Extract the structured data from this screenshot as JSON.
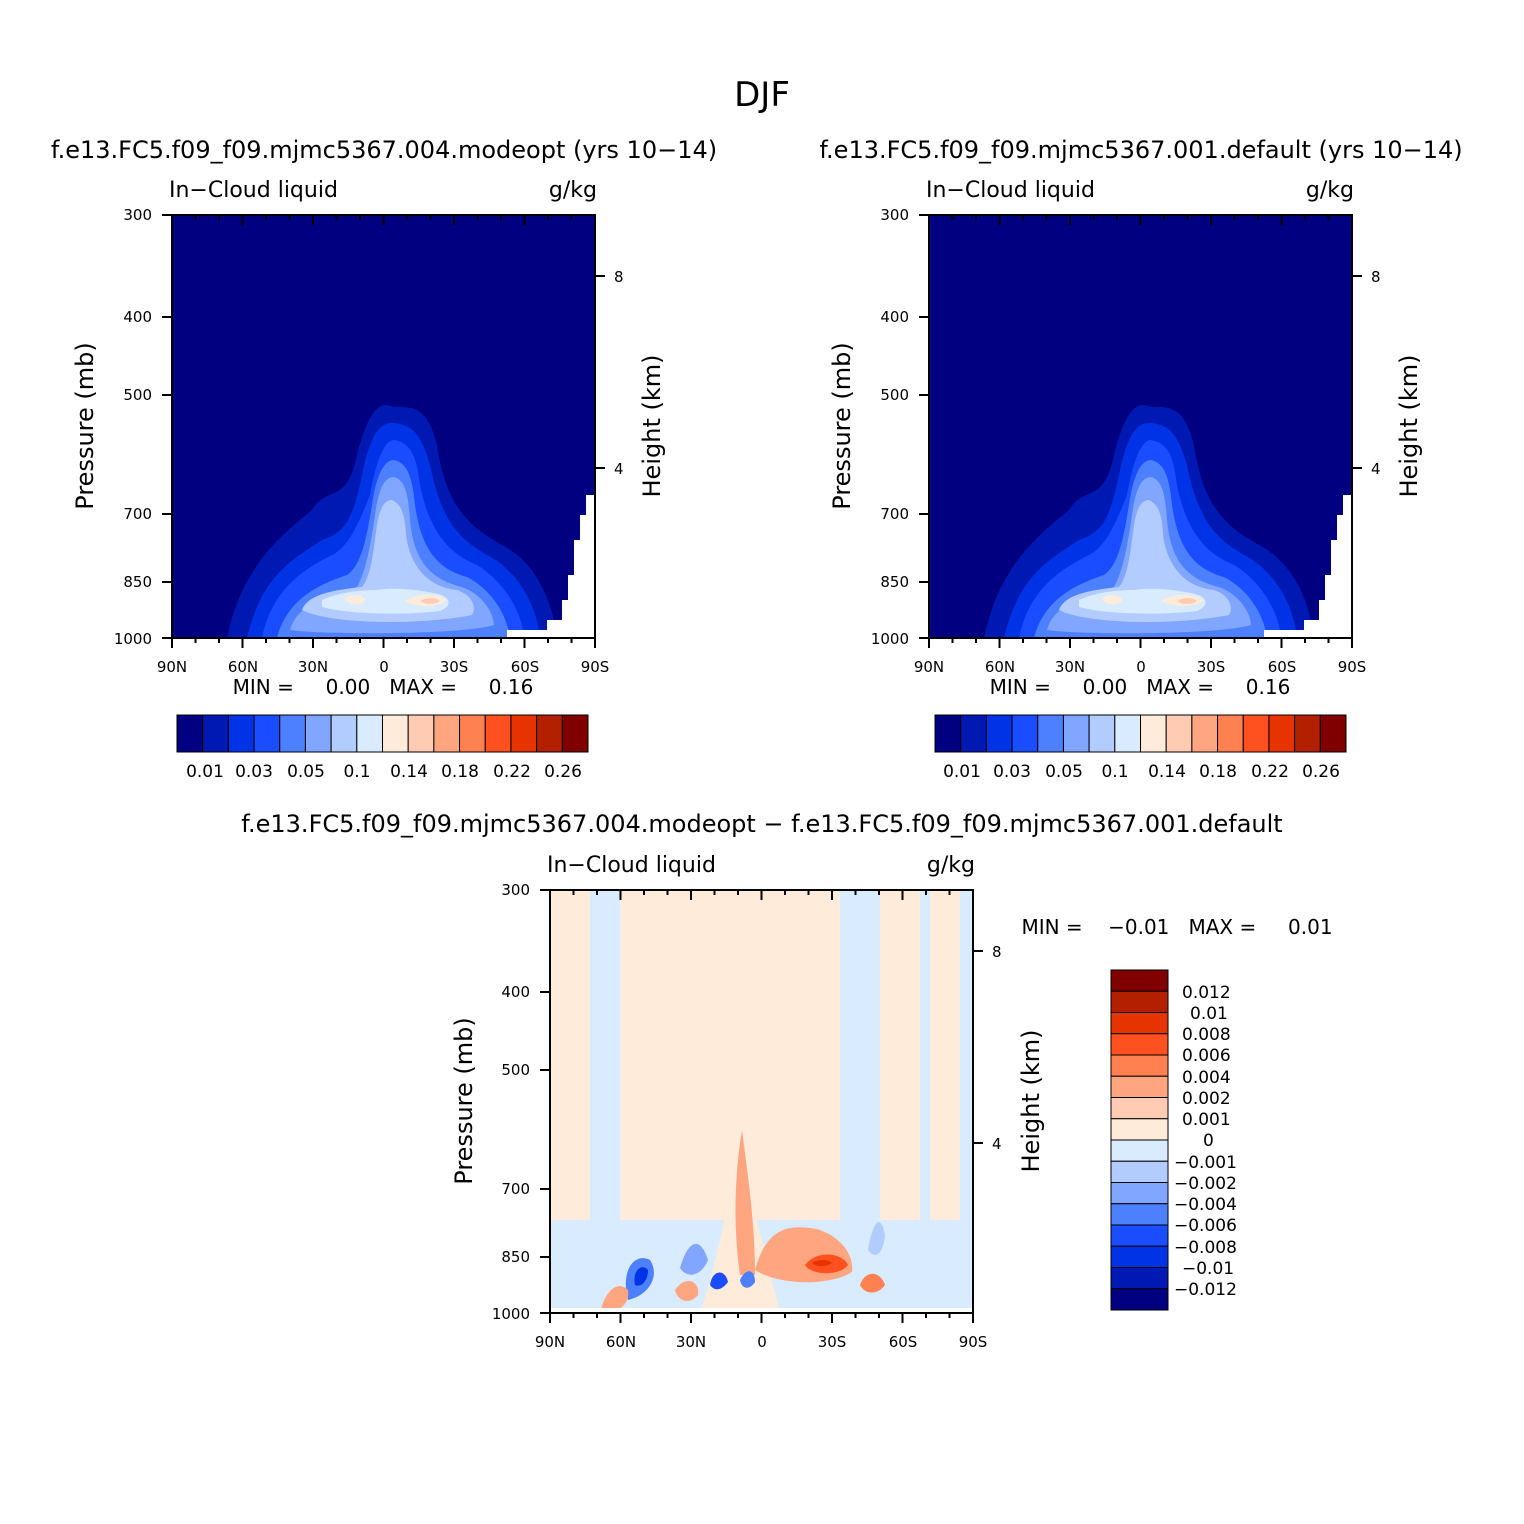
{
  "page_title": "DJF",
  "colors": {
    "main_levels": [
      "#000080",
      "#0019b3",
      "#0033e6",
      "#1a4dff",
      "#4d80ff",
      "#80a6ff",
      "#b3ccff",
      "#d9ebff",
      "#ffebd9",
      "#ffccb3",
      "#ffa680",
      "#ff8050",
      "#ff5020",
      "#e63300",
      "#b32000",
      "#800000"
    ],
    "diff_levels": [
      "#000080",
      "#0019b3",
      "#0033e6",
      "#1a4dff",
      "#4d80ff",
      "#80a6ff",
      "#b3ccff",
      "#d9ebff",
      "#ffebd9",
      "#ffccb3",
      "#ffa680",
      "#ff8050",
      "#ff5020",
      "#e63300",
      "#b32000",
      "#800000"
    ]
  },
  "chart_data": [
    {
      "type": "heatmap",
      "title": "f.e13.FC5.f09_f09.mjmc5367.004.modeopt (yrs 10−14)",
      "left_string": "In−Cloud liquid",
      "right_string": "g/kg",
      "ylabel": "Pressure (mb)",
      "ylabel_right": "Height (km)",
      "xticks": [
        "90N",
        "60N",
        "30N",
        "0",
        "30S",
        "60S",
        "90S"
      ],
      "yticks": [
        "300",
        "400",
        "500",
        "700",
        "850",
        "1000"
      ],
      "yticks_right": [
        "8",
        "4"
      ],
      "min_max_text": "MIN =     0.00   MAX =     0.16",
      "colorbar_labels": [
        "0.01",
        "0.03",
        "0.05",
        "0.1",
        "0.14",
        "0.18",
        "0.22",
        "0.26"
      ]
    },
    {
      "type": "heatmap",
      "title": "f.e13.FC5.f09_f09.mjmc5367.001.default (yrs 10−14)",
      "left_string": "In−Cloud liquid",
      "right_string": "g/kg",
      "ylabel": "Pressure (mb)",
      "ylabel_right": "Height (km)",
      "xticks": [
        "90N",
        "60N",
        "30N",
        "0",
        "30S",
        "60S",
        "90S"
      ],
      "yticks": [
        "300",
        "400",
        "500",
        "700",
        "850",
        "1000"
      ],
      "yticks_right": [
        "8",
        "4"
      ],
      "min_max_text": "MIN =     0.00   MAX =     0.16",
      "colorbar_labels": [
        "0.01",
        "0.03",
        "0.05",
        "0.1",
        "0.14",
        "0.18",
        "0.22",
        "0.26"
      ]
    },
    {
      "type": "heatmap",
      "title": "f.e13.FC5.f09_f09.mjmc5367.004.modeopt − f.e13.FC5.f09_f09.mjmc5367.001.default",
      "left_string": "In−Cloud liquid",
      "right_string": "g/kg",
      "ylabel": "Pressure (mb)",
      "ylabel_right": "Height (km)",
      "xticks": [
        "90N",
        "60N",
        "30N",
        "0",
        "30S",
        "60S",
        "90S"
      ],
      "yticks": [
        "300",
        "400",
        "500",
        "700",
        "850",
        "1000"
      ],
      "yticks_right": [
        "8",
        "4"
      ],
      "min_max_text": "MIN =    −0.01   MAX =     0.01",
      "colorbar_labels": [
        "0.012",
        "0.01",
        "0.008",
        "0.006",
        "0.004",
        "0.002",
        "0.001",
        "0",
        "−0.001",
        "−0.002",
        "−0.004",
        "−0.006",
        "−0.008",
        "−0.01",
        "−0.012"
      ]
    }
  ]
}
